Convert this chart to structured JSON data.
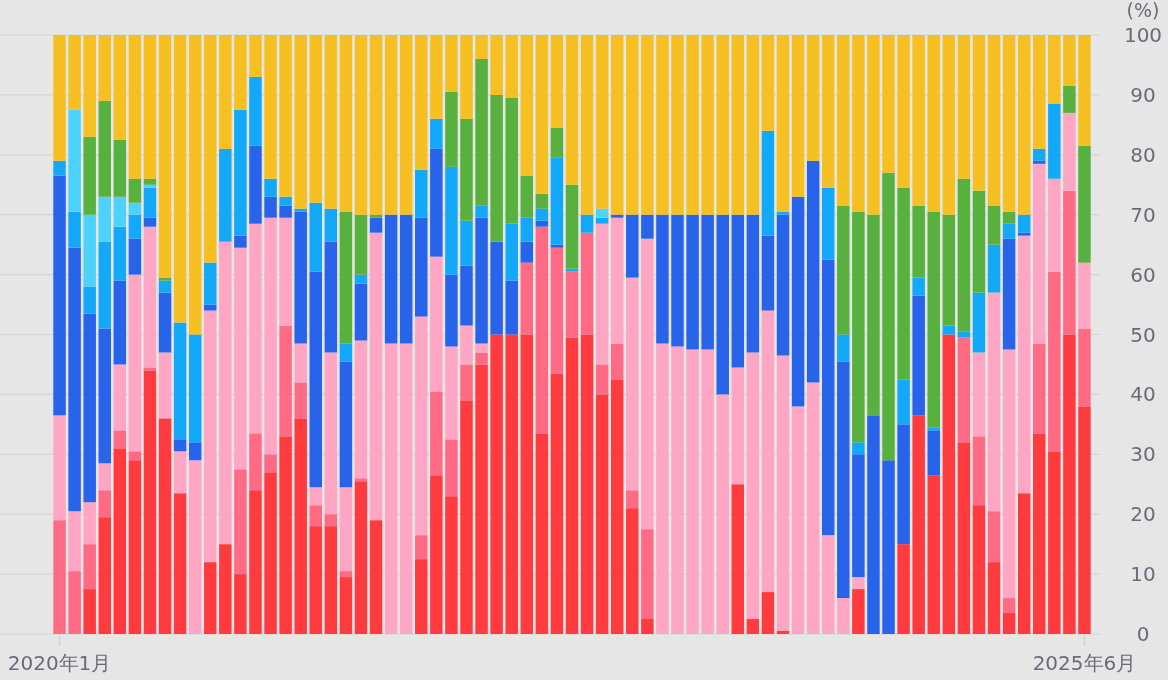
{
  "chart_data": {
    "type": "bar",
    "stacked": true,
    "ylabel": "(%)",
    "categories": [
      "2020年1月",
      null,
      null,
      null,
      null,
      null,
      null,
      null,
      null,
      null,
      null,
      null,
      null,
      null,
      null,
      null,
      null,
      null,
      null,
      null,
      null,
      null,
      null,
      null,
      null,
      null,
      null,
      null,
      null,
      null,
      null,
      null,
      null,
      null,
      null,
      null,
      null,
      null,
      null,
      null,
      null,
      null,
      null,
      null,
      null,
      null,
      null,
      null,
      null,
      null,
      null,
      null,
      null,
      null,
      null,
      null,
      null,
      null,
      null,
      null,
      null,
      null,
      null,
      null,
      null,
      null,
      null,
      null,
      "2025年6月"
    ],
    "ylim": [
      0,
      100
    ],
    "yticks": [
      0,
      10,
      20,
      30,
      40,
      50,
      60,
      70,
      80,
      90,
      100
    ],
    "grid": "y",
    "series": [
      {
        "color": "#ff3b3f",
        "values": [
          0,
          0,
          7.5,
          19.5,
          31,
          29,
          44,
          36,
          23.5,
          0,
          12,
          15,
          10,
          24,
          27,
          33,
          36,
          18,
          18,
          9.5,
          25.5,
          19,
          0,
          0,
          12.5,
          26.5,
          23,
          39,
          45,
          50,
          50,
          50,
          33.5,
          43.5,
          49.5,
          50,
          40,
          42.5,
          21,
          2.5,
          0,
          0,
          0,
          0,
          0,
          25,
          2.5,
          7,
          0.5,
          0,
          0,
          0,
          0,
          7.5,
          0,
          0,
          15,
          36.5,
          26.5,
          50,
          32,
          21.5,
          12,
          3.5,
          23.5,
          33.5,
          30.5,
          50,
          38
        ]
      },
      {
        "color": "#ff6b85",
        "values": [
          19,
          10.5,
          7.5,
          4.5,
          3,
          1.5,
          0.5,
          0,
          0,
          0,
          0,
          0,
          17.5,
          9.5,
          3,
          18.5,
          6,
          3.5,
          2,
          1,
          0.5,
          0,
          0,
          0,
          4,
          14,
          9.5,
          6,
          2,
          0,
          0,
          12,
          34.5,
          21,
          11,
          17,
          5,
          6,
          3,
          15,
          0,
          0,
          0,
          0,
          0,
          0,
          0,
          0,
          0,
          0,
          0,
          0,
          0,
          0,
          0,
          0,
          0,
          0,
          0,
          0,
          17.5,
          11.5,
          8.5,
          2.5,
          0,
          15,
          30,
          24,
          13
        ]
      },
      {
        "color": "#ffa6c4",
        "values": [
          17.5,
          10,
          7,
          4.5,
          11,
          29.5,
          23.5,
          11,
          7,
          29,
          42,
          50.5,
          37,
          35,
          39.5,
          18,
          6.5,
          3,
          27,
          14,
          23,
          48,
          48.5,
          48.5,
          36.5,
          22.5,
          15.5,
          6.5,
          1.5,
          0,
          0,
          0,
          0,
          0,
          0,
          0,
          23.5,
          21,
          35.5,
          48.5,
          48.5,
          48,
          47.5,
          47.5,
          40,
          19.5,
          44.5,
          47,
          46,
          38,
          42,
          16.5,
          6,
          2,
          0,
          0,
          0,
          0,
          0,
          0,
          0,
          14,
          36.5,
          41.5,
          43,
          30,
          15.5,
          13,
          11
        ]
      },
      {
        "color": "#2864ea",
        "values": [
          40,
          44,
          31.5,
          22.5,
          14,
          6,
          1.5,
          10,
          2,
          3,
          1,
          0,
          2,
          13,
          3.5,
          2,
          22,
          36,
          18.5,
          21,
          9.5,
          2.5,
          21.5,
          21.5,
          16.5,
          18,
          12,
          10,
          21,
          15.5,
          9,
          3.5,
          1,
          0.5,
          0,
          0,
          0,
          0.5,
          10.5,
          4,
          21.5,
          22,
          22.5,
          22.5,
          30,
          25.5,
          23,
          12.5,
          23.5,
          35,
          37,
          46,
          39.5,
          20.5,
          36.5,
          29,
          20,
          20,
          7.5,
          0,
          0,
          0,
          0,
          18.5,
          0.5,
          0.5,
          0,
          0,
          0
        ]
      },
      {
        "color": "#14a9f8",
        "values": [
          2.5,
          6,
          4.5,
          14.5,
          9,
          4,
          5,
          2,
          19.5,
          18,
          7,
          15.5,
          21,
          11.5,
          3,
          1.5,
          0.5,
          11.5,
          5.5,
          3,
          1.5,
          0,
          0,
          0,
          8,
          5,
          18,
          7.5,
          2,
          0,
          9.5,
          4,
          2,
          14.5,
          0.5,
          3,
          1,
          0,
          0,
          0,
          0,
          0,
          0,
          0,
          0,
          0,
          0,
          17.5,
          0.5,
          0,
          0,
          12,
          4.5,
          2,
          0,
          0,
          7.5,
          3,
          0.5,
          1.5,
          1,
          10,
          8,
          2.5,
          3,
          2,
          12.5,
          0,
          0
        ]
      },
      {
        "color": "#4dd3fb",
        "values": [
          0,
          17,
          12,
          7.5,
          5,
          2,
          0.5,
          0,
          0,
          0,
          0,
          0,
          0,
          0,
          0,
          0,
          0,
          0,
          0,
          0,
          0,
          0,
          0,
          0,
          0,
          0,
          0,
          0,
          0,
          0,
          0,
          0,
          0,
          0,
          0,
          0,
          1.5,
          0,
          0,
          0,
          0,
          0,
          0,
          0,
          0,
          0,
          0,
          0,
          0,
          0,
          0,
          0,
          0,
          0,
          0,
          0,
          0,
          0,
          0,
          0,
          0,
          0,
          0,
          0,
          0,
          0,
          0,
          0,
          0
        ]
      },
      {
        "color": "#58b03e",
        "values": [
          0,
          0,
          13,
          16,
          9.5,
          4,
          1,
          0.5,
          0,
          0,
          0,
          0,
          0,
          0,
          0,
          0,
          0,
          0,
          0,
          22,
          10,
          0.5,
          0,
          0,
          0,
          0,
          12.5,
          17,
          24.5,
          24.5,
          21,
          7,
          2.5,
          5,
          14,
          0,
          0,
          0,
          0,
          0,
          0,
          0,
          0,
          0,
          0,
          0,
          0,
          0,
          0,
          0,
          0,
          0,
          21.5,
          38.5,
          33.5,
          48,
          32,
          12,
          36,
          18.5,
          25.5,
          17,
          6.5,
          2,
          0,
          0,
          0,
          4.5,
          19.5
        ]
      },
      {
        "color": "#f6c023",
        "values": [
          21,
          12.5,
          17,
          11,
          17.5,
          24,
          24,
          40.5,
          48,
          50,
          38,
          19,
          12.5,
          7,
          24,
          27,
          29,
          28,
          29,
          29.5,
          30,
          30,
          30,
          30,
          22.5,
          14,
          9.5,
          14,
          4,
          10,
          10.5,
          23.5,
          26.5,
          15.5,
          25,
          30,
          29,
          30,
          30,
          30,
          30,
          30,
          30,
          30,
          30,
          30,
          30,
          16,
          29.5,
          27,
          21,
          25.5,
          28.5,
          29.5,
          30,
          23,
          25.5,
          28.5,
          29.5,
          30,
          24,
          26,
          28.5,
          29.5,
          30,
          19,
          11.5,
          8.5,
          18.5
        ]
      }
    ]
  }
}
